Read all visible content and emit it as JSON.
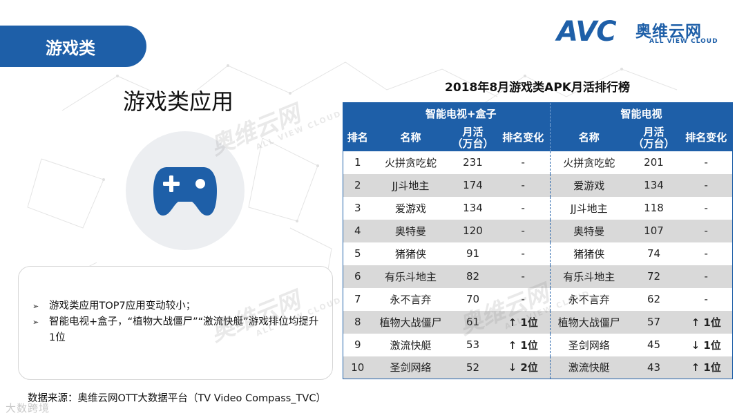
{
  "section": {
    "tab_label": "游戏类"
  },
  "logo": {
    "brand": "AVC",
    "name_cn": "奥维云网",
    "name_en": "ALL VIEW CLOUD"
  },
  "left": {
    "app_title": "游戏类应用",
    "icon": "gamepad-icon",
    "notes": [
      "游戏类应用TOP7应用变动较小；",
      "智能电视+盒子，“植物大战僵尸”“激流快艇”游戏排位均提升1位"
    ]
  },
  "source": "数据来源：奥维云网OTT大数据平台（TV Video Compass_TVC）",
  "footer_mark": "大数跨境",
  "watermark": {
    "cn": "奥维云网",
    "en": "ALL VIEW CLOUD"
  },
  "table": {
    "title": "2018年8月游戏类APK月活排行榜",
    "group_left": "智能电视+盒子",
    "group_right": "智能电视",
    "col_rank": "排名",
    "col_name": "名称",
    "col_mau": "月活\n（万台）",
    "col_change": "排名变化",
    "rows": [
      {
        "rank": "1",
        "l_name": "火拼贪吃蛇",
        "l_mau": "231",
        "l_change": "-",
        "l_dir": "flat",
        "r_name": "火拼贪吃蛇",
        "r_mau": "201",
        "r_change": "-",
        "r_dir": "flat"
      },
      {
        "rank": "2",
        "l_name": "JJ斗地主",
        "l_mau": "174",
        "l_change": "-",
        "l_dir": "flat",
        "r_name": "爱游戏",
        "r_mau": "134",
        "r_change": "-",
        "r_dir": "flat"
      },
      {
        "rank": "3",
        "l_name": "爱游戏",
        "l_mau": "134",
        "l_change": "-",
        "l_dir": "flat",
        "r_name": "JJ斗地主",
        "r_mau": "118",
        "r_change": "-",
        "r_dir": "flat"
      },
      {
        "rank": "4",
        "l_name": "奥特曼",
        "l_mau": "120",
        "l_change": "-",
        "l_dir": "flat",
        "r_name": "奥特曼",
        "r_mau": "107",
        "r_change": "-",
        "r_dir": "flat"
      },
      {
        "rank": "5",
        "l_name": "猪猪侠",
        "l_mau": "91",
        "l_change": "-",
        "l_dir": "flat",
        "r_name": "猪猪侠",
        "r_mau": "74",
        "r_change": "-",
        "r_dir": "flat"
      },
      {
        "rank": "6",
        "l_name": "有乐斗地主",
        "l_mau": "82",
        "l_change": "-",
        "l_dir": "flat",
        "r_name": "有乐斗地主",
        "r_mau": "72",
        "r_change": "-",
        "r_dir": "flat"
      },
      {
        "rank": "7",
        "l_name": "永不言弃",
        "l_mau": "70",
        "l_change": "-",
        "l_dir": "flat",
        "r_name": "永不言弃",
        "r_mau": "62",
        "r_change": "-",
        "r_dir": "flat"
      },
      {
        "rank": "8",
        "l_name": "植物大战僵尸",
        "l_mau": "61",
        "l_change": "↑ 1位",
        "l_dir": "up",
        "r_name": "植物大战僵尸",
        "r_mau": "57",
        "r_change": "↑ 1位",
        "r_dir": "up"
      },
      {
        "rank": "9",
        "l_name": "激流快艇",
        "l_mau": "53",
        "l_change": "↑ 1位",
        "l_dir": "up",
        "r_name": "圣剑网络",
        "r_mau": "45",
        "r_change": "↓ 1位",
        "r_dir": "down"
      },
      {
        "rank": "10",
        "l_name": "圣剑网络",
        "l_mau": "52",
        "l_change": "↓ 2位",
        "l_dir": "down",
        "r_name": "激流快艇",
        "r_mau": "43",
        "r_change": "↑ 1位",
        "r_dir": "up"
      }
    ]
  },
  "colors": {
    "primary": "#1e5fa8",
    "up": "#d0021b",
    "down": "#1f9a3c",
    "row_alt": "#d9d9d9"
  }
}
